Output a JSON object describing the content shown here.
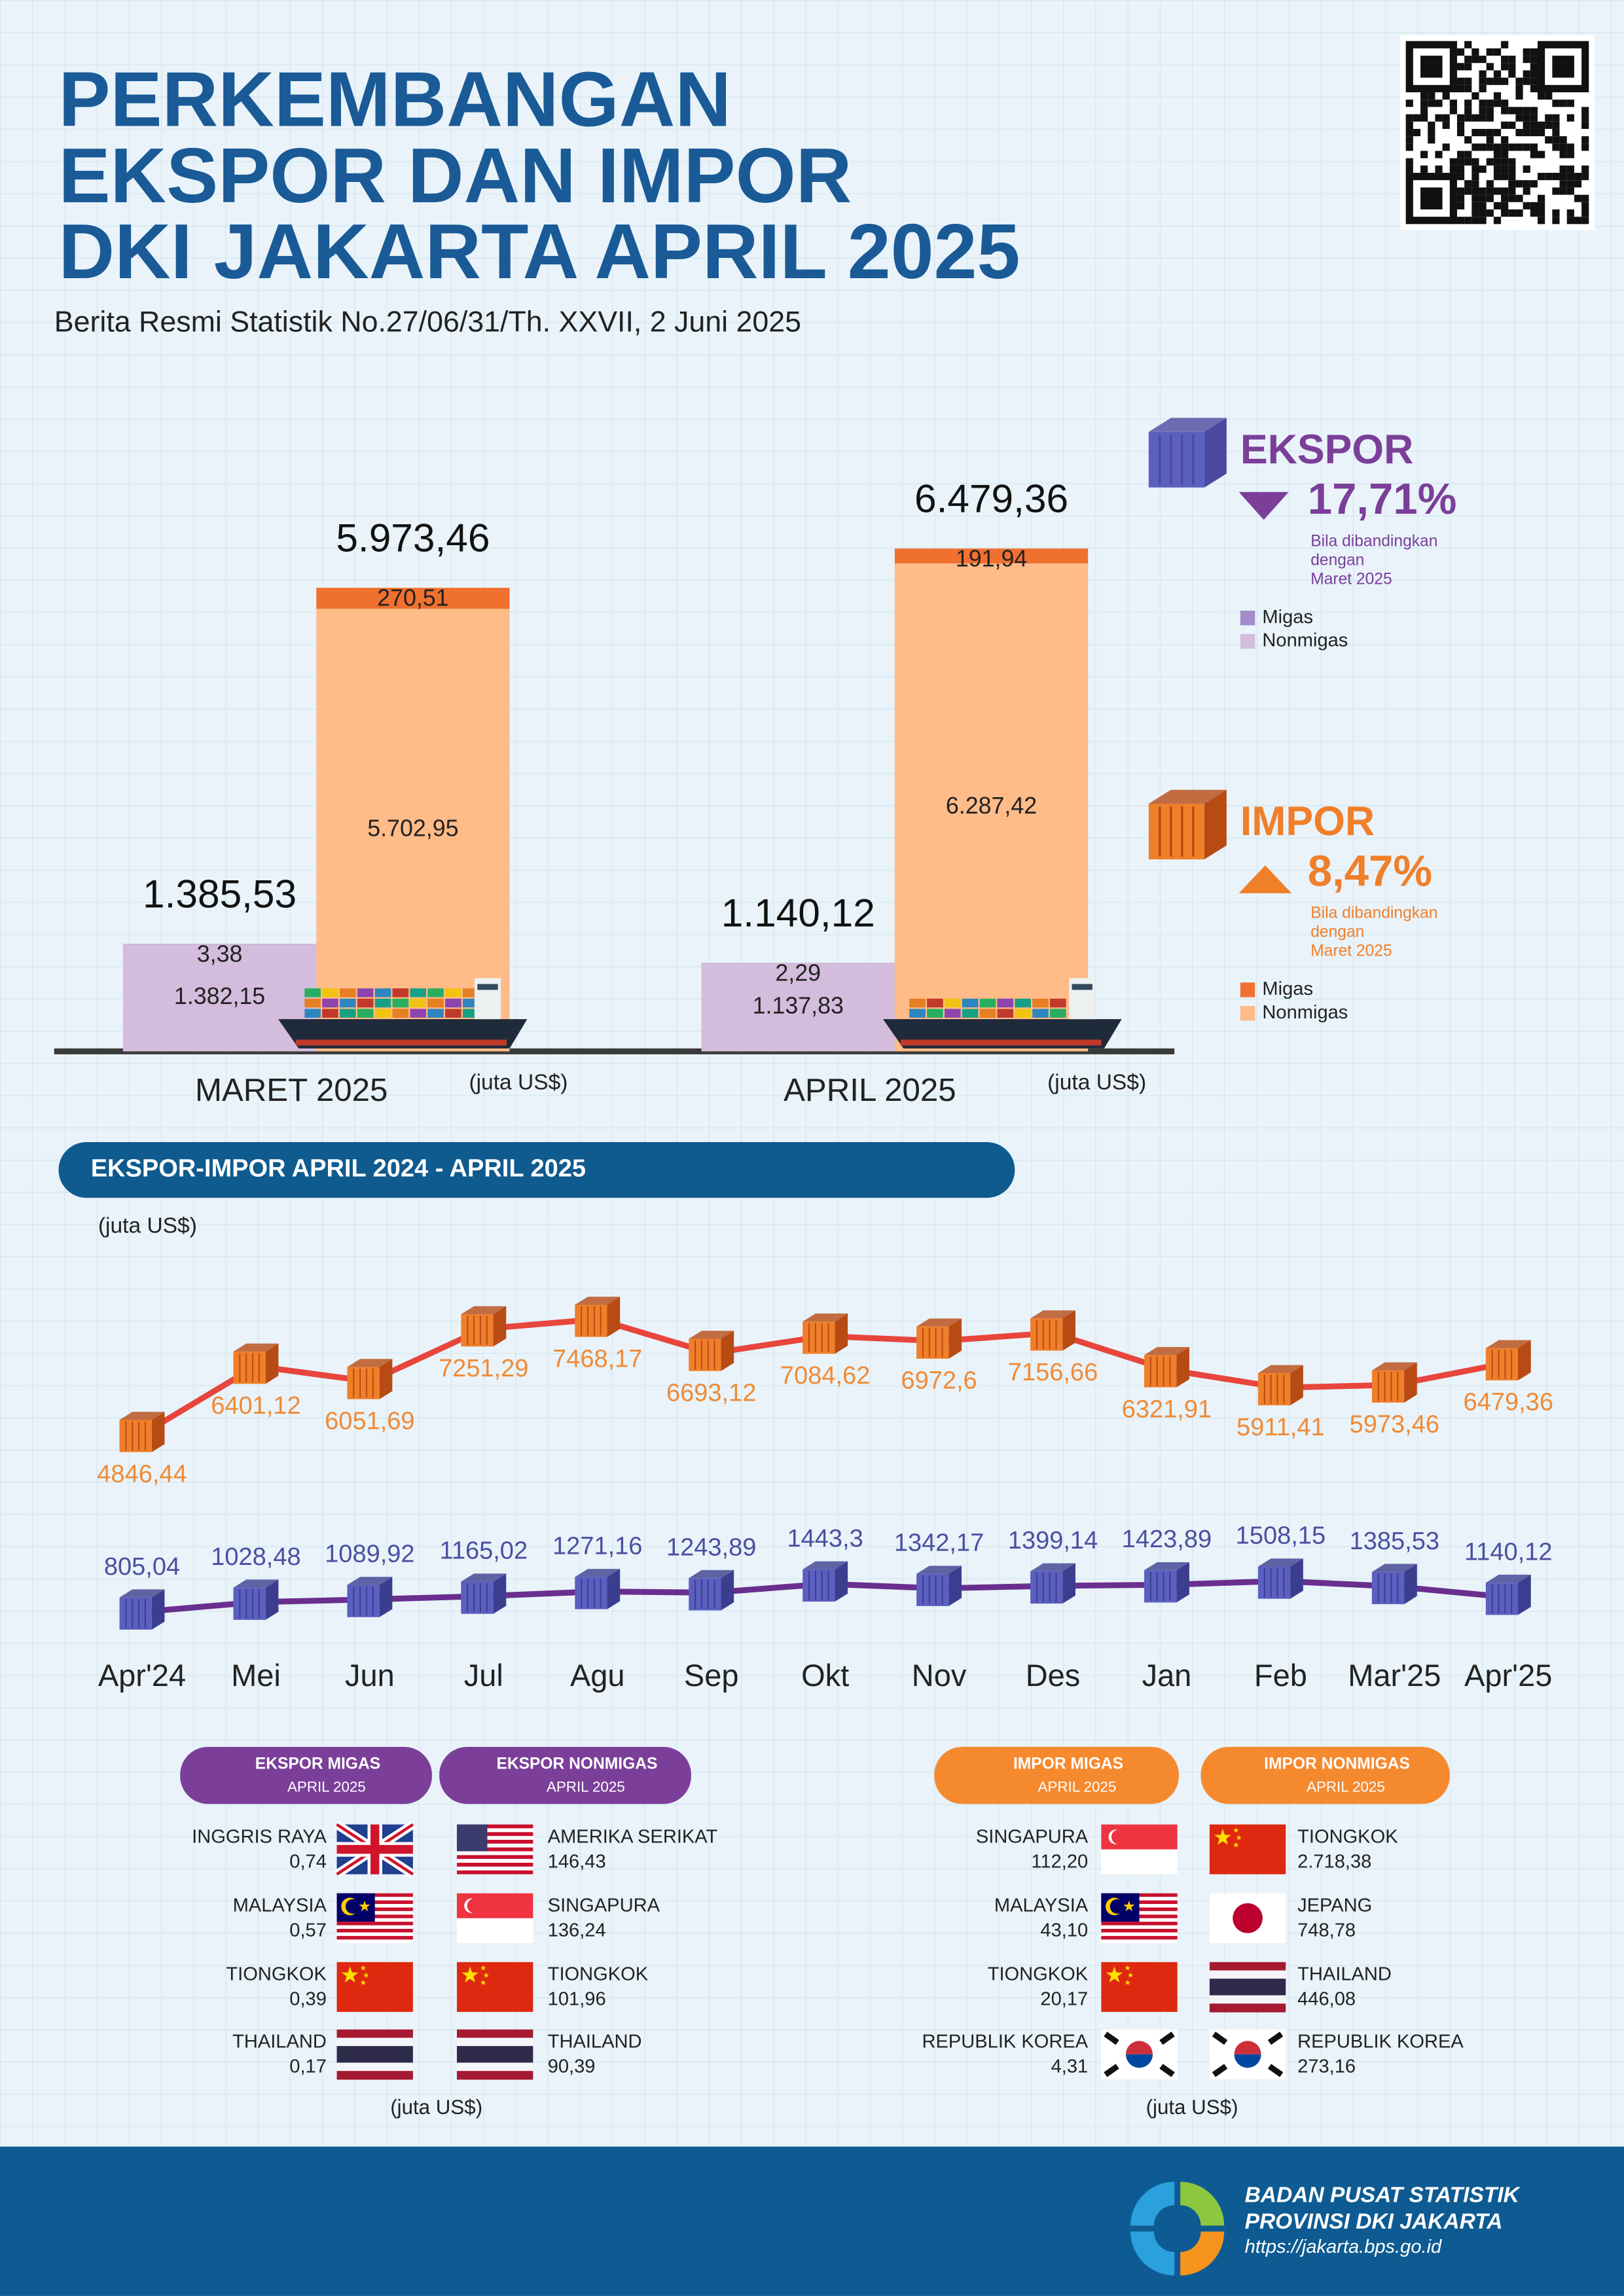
{
  "header": {
    "title": [
      "PERKEMBANGAN",
      "EKSPOR DAN IMPOR",
      "DKI JAKARTA APRIL 2025"
    ],
    "subtitle": "Berita Resmi Statistik No.27/06/31/Th. XXVII, 2 Juni 2025"
  },
  "chart_data": [
    {
      "type": "stacked_bar",
      "categories": [
        "MARET 2025",
        "APRIL 2025"
      ],
      "unit": "(juta US$)",
      "groups": [
        {
          "name": "EKSPOR",
          "color": "#7b3f99",
          "change": "17,71%",
          "direction": "down",
          "note": [
            "Bila dibandingkan",
            "dengan",
            "Maret 2025"
          ],
          "series": [
            {
              "name": "Migas",
              "color": "#a58bc9",
              "values": [
                3.38,
                2.29
              ],
              "value_labels": [
                "3,38",
                "2,29"
              ]
            },
            {
              "name": "Nonmigas",
              "color": "#d4bcdc",
              "values": [
                1382.15,
                1137.83
              ],
              "value_labels": [
                "1.382,15",
                "1.137,83"
              ]
            }
          ],
          "totals": [
            1385.53,
            1140.12
          ],
          "total_labels": [
            "1.385,53",
            "1.140,12"
          ]
        },
        {
          "name": "IMPOR",
          "color": "#f07f2a",
          "change": "8,47%",
          "direction": "up",
          "note": [
            "Bila dibandingkan",
            "dengan",
            "Maret 2025"
          ],
          "series": [
            {
              "name": "Migas",
              "color": "#f07030",
              "values": [
                270.51,
                191.94
              ],
              "value_labels": [
                "270,51",
                "191,94"
              ]
            },
            {
              "name": "Nonmigas",
              "color": "#ffbb88",
              "values": [
                5702.95,
                6287.42
              ],
              "value_labels": [
                "5.702,95",
                "6.287,42"
              ]
            }
          ],
          "totals": [
            5973.46,
            6479.36
          ],
          "total_labels": [
            "5.973,46",
            "6.479,36"
          ]
        }
      ]
    },
    {
      "type": "line",
      "title": "EKSPOR-IMPOR APRIL 2024 - APRIL 2025",
      "unit": "(juta US$)",
      "categories": [
        "Apr'24",
        "Mei",
        "Jun",
        "Jul",
        "Agu",
        "Sep",
        "Okt",
        "Nov",
        "Des",
        "Jan",
        "Feb",
        "Mar'25",
        "Apr'25"
      ],
      "series": [
        {
          "color": "#e8453c",
          "marker_color": "#f07f2a",
          "label_color": "#f08a35",
          "label_position": "below",
          "values": [
            4846.44,
            6401.12,
            6051.69,
            7251.29,
            7468.17,
            6693.12,
            7084.62,
            6972.6,
            7156.66,
            6321.91,
            5911.41,
            5973.46,
            6479.36
          ],
          "value_labels": [
            "4846,44",
            "6401,12",
            "6051,69",
            "7251,29",
            "7468,17",
            "6693,12",
            "7084,62",
            "6972,6",
            "7156,66",
            "6321,91",
            "5911,41",
            "5973,46",
            "6479,36"
          ]
        },
        {
          "color": "#6a2e8f",
          "marker_color": "#5b5fc0",
          "label_color": "#4a4fa0",
          "label_position": "above",
          "values": [
            805.04,
            1028.48,
            1089.92,
            1165.02,
            1271.16,
            1243.89,
            1443.3,
            1342.17,
            1399.14,
            1423.89,
            1508.15,
            1385.53,
            1140.12
          ],
          "value_labels": [
            "805,04",
            "1028,48",
            "1089,92",
            "1165,02",
            "1271,16",
            "1243,89",
            "1443,3",
            "1342,17",
            "1399,14",
            "1423,89",
            "1508,15",
            "1385,53",
            "1140,12"
          ]
        }
      ]
    }
  ],
  "tables": [
    {
      "title": "EKSPOR MIGAS",
      "subtitle": "APRIL 2025",
      "color": "#7b3f99",
      "rows": [
        [
          "INGGRIS RAYA",
          "0,74"
        ],
        [
          "MALAYSIA",
          "0,57"
        ],
        [
          "TIONGKOK",
          "0,39"
        ],
        [
          "THAILAND",
          "0,17"
        ]
      ]
    },
    {
      "title": "EKSPOR NONMIGAS",
      "subtitle": "APRIL 2025",
      "color": "#7b3f99",
      "rows": [
        [
          "AMERIKA SERIKAT",
          "146,43"
        ],
        [
          "SINGAPURA",
          "136,24"
        ],
        [
          "TIONGKOK",
          "101,96"
        ],
        [
          "THAILAND",
          "90,39"
        ]
      ]
    },
    {
      "title": "IMPOR MIGAS",
      "subtitle": "APRIL 2025",
      "color": "#f5892e",
      "rows": [
        [
          "SINGAPURA",
          "112,20"
        ],
        [
          "MALAYSIA",
          "43,10"
        ],
        [
          "TIONGKOK",
          "20,17"
        ],
        [
          "REPUBLIK KOREA",
          "4,31"
        ]
      ]
    },
    {
      "title": "IMPOR NONMIGAS",
      "subtitle": "APRIL 2025",
      "color": "#f5892e",
      "rows": [
        [
          "TIONGKOK",
          "2.718,38"
        ],
        [
          "JEPANG",
          "748,78"
        ],
        [
          "THAILAND",
          "446,08"
        ],
        [
          "REPUBLIK KOREA",
          "273,16"
        ]
      ]
    }
  ],
  "table_units": [
    "(juta US$)",
    "(juta US$)"
  ],
  "footer": {
    "lines": [
      "BADAN PUSAT STATISTIK",
      "PROVINSI DKI JAKARTA"
    ],
    "url": "https://jakarta.bps.go.id"
  }
}
